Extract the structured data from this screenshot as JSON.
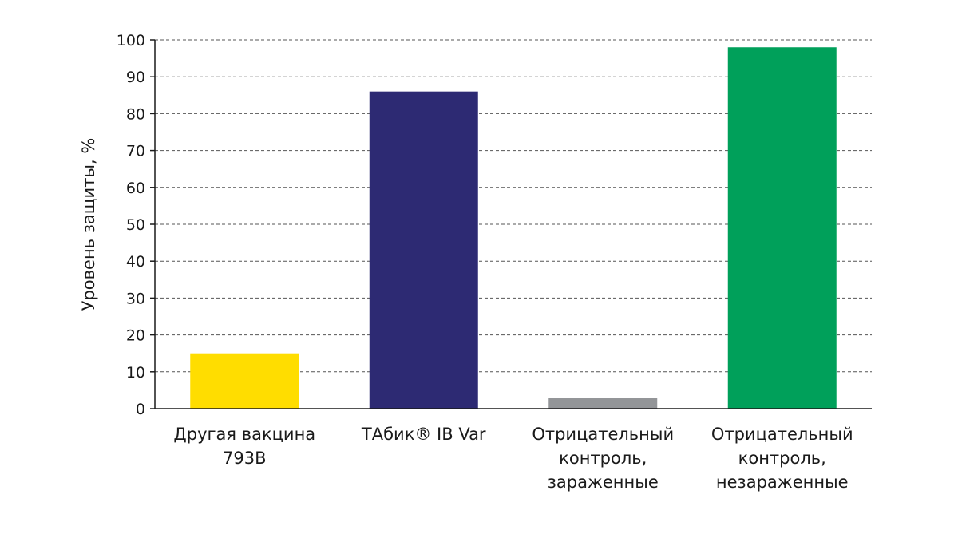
{
  "chart_data": {
    "type": "bar",
    "title": "",
    "xlabel": "",
    "ylabel": "Уровень защиты, %",
    "ylim": [
      0,
      100
    ],
    "yticks": [
      "0",
      "10",
      "20",
      "30",
      "40",
      "50",
      "60",
      "70",
      "80",
      "90",
      "100"
    ],
    "grid": true,
    "categories": [
      [
        "Другая вакцина",
        "793B"
      ],
      [
        "ТАбик® IB Var"
      ],
      [
        "Отрицательный",
        "контроль,",
        "зараженные"
      ],
      [
        "Отрицательный",
        "контроль,",
        "незараженные"
      ]
    ],
    "values": [
      15,
      86,
      3,
      98
    ],
    "colors": [
      "#FFDD00",
      "#2D2A73",
      "#939598",
      "#00A05A"
    ]
  }
}
